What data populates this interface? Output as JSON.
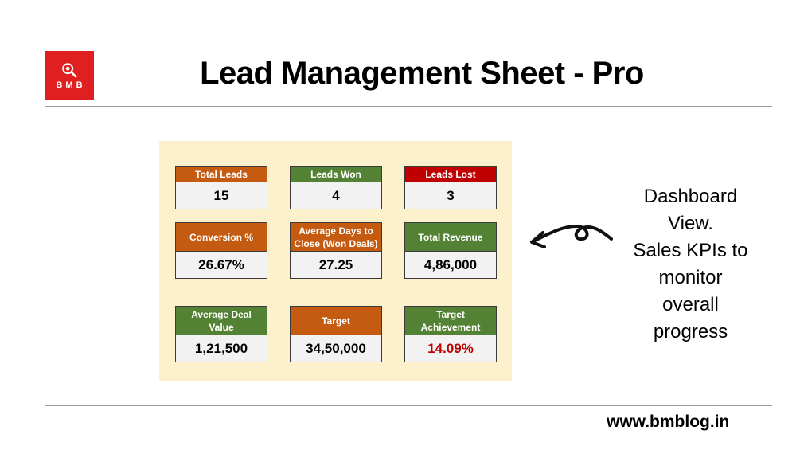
{
  "header": {
    "title": "Lead Management Sheet - Pro"
  },
  "logo": {
    "text": "BMB",
    "icon": "magnifier-icon"
  },
  "dashboard": {
    "cards": [
      {
        "label": "Total Leads",
        "value": "15",
        "color": "#c55a11"
      },
      {
        "label": "Leads Won",
        "value": "4",
        "color": "#548235"
      },
      {
        "label": "Leads Lost",
        "value": "3",
        "color": "#c00000"
      },
      {
        "label": "Conversion %",
        "value": "26.67%",
        "color": "#c55a11"
      },
      {
        "label": "Average Days to Close (Won Deals)",
        "value": "27.25",
        "color": "#c55a11"
      },
      {
        "label": "Total Revenue",
        "value": "4,86,000",
        "color": "#548235"
      },
      {
        "label": "Average Deal Value",
        "value": "1,21,500",
        "color": "#548235"
      },
      {
        "label": "Target",
        "value": "34,50,000",
        "color": "#c55a11"
      },
      {
        "label": "Target Achievement",
        "value": "14.09%",
        "color": "#548235",
        "value_color": "#c00000"
      }
    ],
    "background": "#fdf0cc"
  },
  "annotation": {
    "lines": [
      "Dashboard",
      "View.",
      "Sales KPIs to",
      "monitor",
      "overall",
      "progress"
    ],
    "icon": "curved-arrow-icon"
  },
  "footer": {
    "url": "www.bmblog.in"
  }
}
